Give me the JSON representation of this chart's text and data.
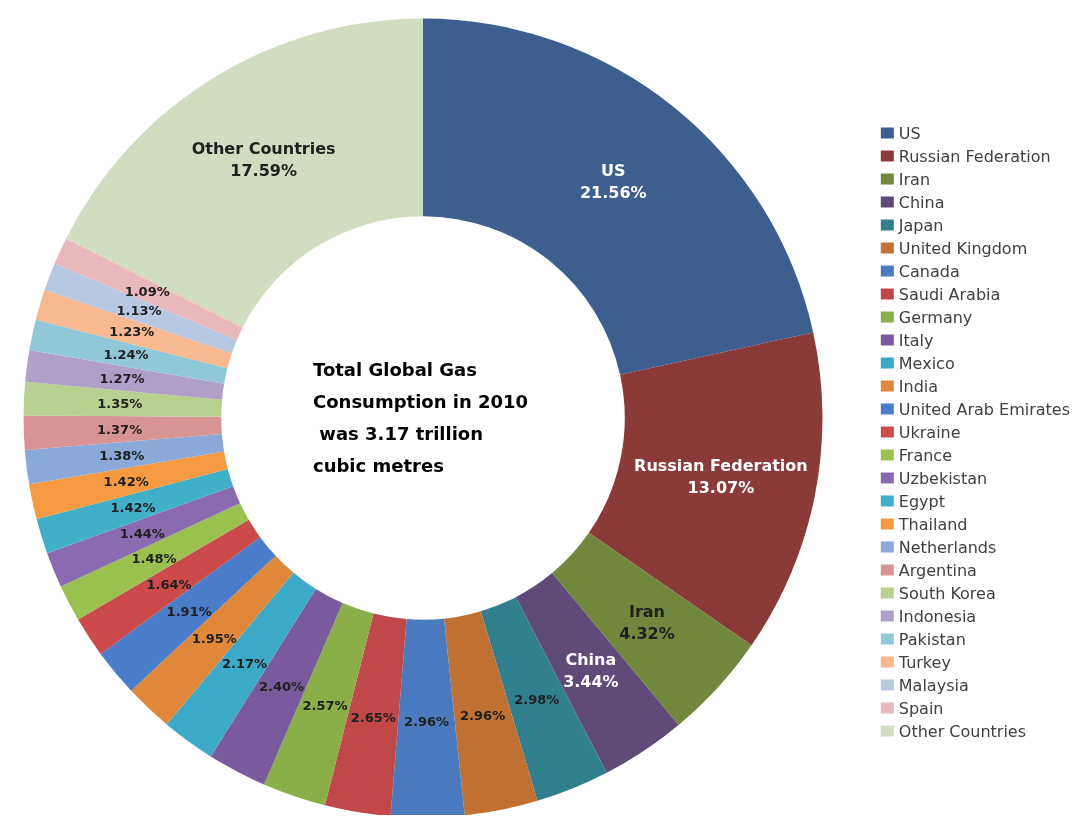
{
  "chart_data": {
    "type": "donut",
    "categories": [
      "US",
      "Russian Federation",
      "Iran",
      "China",
      "Japan",
      "United Kingdom",
      "Canada",
      "Saudi Arabia",
      "Germany",
      "Italy",
      "Mexico",
      "India",
      "United Arab Emirates",
      "Ukraine",
      "France",
      "Uzbekistan",
      "Egypt",
      "Thailand",
      "Netherlands",
      "Argentina",
      "South Korea",
      "Indonesia",
      "Pakistan",
      "Turkey",
      "Malaysia",
      "Spain",
      "Other Countries"
    ],
    "values": [
      21.56,
      13.07,
      4.32,
      3.44,
      2.98,
      2.96,
      2.96,
      2.65,
      2.57,
      2.4,
      2.17,
      1.95,
      1.91,
      1.64,
      1.48,
      1.44,
      1.42,
      1.42,
      1.38,
      1.37,
      1.35,
      1.27,
      1.24,
      1.23,
      1.13,
      1.09,
      17.59
    ],
    "value_labels": [
      "US\n21.56%",
      "Russian Federation\n13.07%",
      "Iran\n4.32%",
      "China\n3.44%",
      "2.98%",
      "2.96%",
      "2.96%",
      "2.65%",
      "2.57%",
      "2.40%",
      "2.17%",
      "1.95%",
      "1.91%",
      "1.64%",
      "1.48%",
      "1.44%",
      "1.42%",
      "1.42%",
      "1.38%",
      "1.37%",
      "1.35%",
      "1.27%",
      "1.24%",
      "1.23%",
      "1.13%",
      "1.09%",
      "Other Countries\n17.59%"
    ],
    "colors": [
      "#3c5f8f",
      "#8b3a3a",
      "#71883c",
      "#5f4a7a",
      "#2f7f8f",
      "#c07030",
      "#4a7ac0",
      "#c04848",
      "#8aae48",
      "#7a5a9e",
      "#3aaac8",
      "#e0883a",
      "#4a7ecb",
      "#cc4a4a",
      "#9ac050",
      "#8a6ab0",
      "#40b0c8",
      "#f59a40",
      "#8aa8d8",
      "#d89494",
      "#b8d090",
      "#b0a0c8",
      "#90c8d8",
      "#f8b890",
      "#b8c8e0",
      "#e8b8bc",
      "#d0ddc0"
    ],
    "annotations": [
      "Total Global Gas Consumption in 2010 was 3.17 trillion cubic metres"
    ],
    "legend": "right"
  }
}
